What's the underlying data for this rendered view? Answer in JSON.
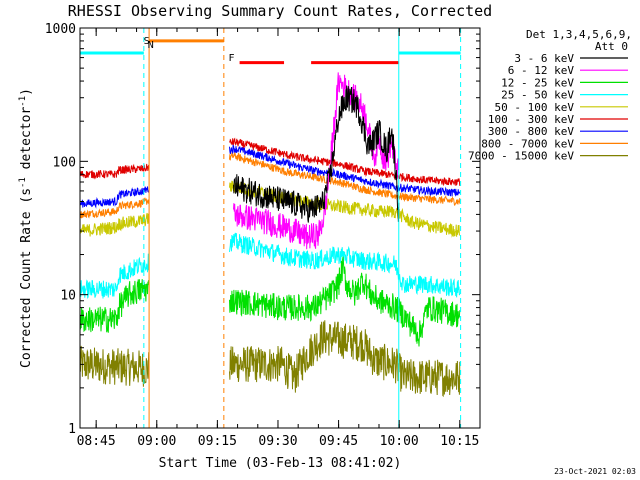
{
  "chart_data": {
    "type": "line",
    "title": "RHESSI Observing Summary Count Rates, Corrected",
    "xlabel": "Start Time (03-Feb-13 08:41:02)",
    "ylabel_main": "Corrected Count Rate (s",
    "ylabel_sup1": "-1",
    "ylabel_mid": " detector",
    "ylabel_sup2": "-1",
    "ylabel_end": ")",
    "x_unit": "minutes since 08:41:02",
    "xlim": [
      0,
      99
    ],
    "yscale": "log",
    "ylim": [
      1,
      1000
    ],
    "x_ticks": [
      {
        "label": "08:45",
        "value": 4
      },
      {
        "label": "09:00",
        "value": 19
      },
      {
        "label": "09:15",
        "value": 34
      },
      {
        "label": "09:30",
        "value": 49
      },
      {
        "label": "09:45",
        "value": 64
      },
      {
        "label": "10:00",
        "value": 79
      },
      {
        "label": "10:15",
        "value": 94
      }
    ],
    "y_ticks": [
      {
        "label": "1",
        "value": 1
      },
      {
        "label": "10",
        "value": 10
      },
      {
        "label": "100",
        "value": 100
      },
      {
        "label": "1000",
        "value": 1000
      }
    ],
    "legend": {
      "header1": "Det 1,3,4,5,6,9,",
      "header2": "Att 0",
      "entries": [
        {
          "name": "3 - 6 keV",
          "color": "#000000"
        },
        {
          "name": "6 - 12 keV",
          "color": "#ff00ff"
        },
        {
          "name": "12 - 25 keV",
          "color": "#00e000"
        },
        {
          "name": "25 - 50 keV",
          "color": "#00ffff"
        },
        {
          "name": "50 - 100 keV",
          "color": "#c8c800"
        },
        {
          "name": "100 - 300 keV",
          "color": "#e00000"
        },
        {
          "name": "300 - 800 keV",
          "color": "#0000ff"
        },
        {
          "name": "800 - 7000 keV",
          "color": "#ff7f00"
        },
        {
          "name": "7000 - 15000 keV",
          "color": "#808000"
        }
      ]
    },
    "gap": [
      17,
      37
    ],
    "annotations": [
      {
        "label": "S",
        "x": 16.5,
        "color": "#ff7f00"
      },
      {
        "label": "N",
        "x": 17.5,
        "color": "#00ffff"
      },
      {
        "label": "F",
        "x": 37.5,
        "color": "#ff0000"
      }
    ],
    "vlines": [
      {
        "x": 15.8,
        "color": "#00ffff",
        "dash": true
      },
      {
        "x": 17.1,
        "color": "#ff7f00",
        "dash": false
      },
      {
        "x": 35.6,
        "color": "#ff7f00",
        "dash": true
      },
      {
        "x": 78.9,
        "color": "#00ffff",
        "dash": false
      },
      {
        "x": 94.2,
        "color": "#00ffff",
        "dash": true
      }
    ],
    "bars": [
      {
        "x0": 0,
        "x1": 15.8,
        "y": 650,
        "color": "#00ffff"
      },
      {
        "x0": 17.1,
        "x1": 35.6,
        "y": 800,
        "color": "#ff7f00"
      },
      {
        "x0": 39.5,
        "x1": 50.5,
        "y": 550,
        "color": "#ff0000"
      },
      {
        "x0": 57.2,
        "x1": 78.9,
        "y": 550,
        "color": "#ff0000"
      },
      {
        "x0": 78.9,
        "x1": 94.2,
        "y": 650,
        "color": "#00ffff"
      }
    ],
    "series": [
      {
        "name": "3 - 6 keV",
        "color": "#000000",
        "noise": 0.1,
        "x": [
          38,
          45,
          53,
          57,
          60,
          62,
          64,
          66,
          68,
          69,
          70,
          71,
          72,
          73,
          74,
          75,
          76,
          77,
          77.6,
          78.2,
          78.9
        ],
        "y": [
          65,
          56,
          48,
          43,
          48,
          80,
          220,
          300,
          280,
          240,
          190,
          140,
          130,
          150,
          170,
          140,
          120,
          180,
          130,
          80,
          40
        ]
      },
      {
        "name": "6 - 12 keV",
        "color": "#ff00ff",
        "noise": 0.1,
        "x": [
          38,
          45,
          52,
          56,
          59,
          60.5,
          62,
          64,
          66,
          68,
          70,
          71,
          72,
          73,
          74,
          75,
          76,
          77,
          78,
          78.9
        ],
        "y": [
          40,
          36,
          31,
          27,
          28,
          40,
          100,
          400,
          350,
          300,
          250,
          200,
          140,
          110,
          150,
          110,
          100,
          140,
          100,
          80
        ]
      },
      {
        "name": "12 - 25 keV",
        "color": "#00e000",
        "noise": 0.1,
        "x": [
          0,
          9,
          9.6,
          12,
          15.8,
          38,
          50,
          58,
          62,
          64,
          65,
          66,
          68,
          70,
          72,
          74,
          76,
          78,
          80,
          84,
          86,
          94
        ],
        "y": [
          6.5,
          6.5,
          8,
          10,
          11,
          9,
          8,
          8,
          10,
          12,
          16,
          12,
          10,
          13,
          10,
          9,
          8.5,
          8,
          7,
          5,
          8,
          7
        ]
      },
      {
        "name": "25 - 50 keV",
        "color": "#00ffff",
        "noise": 0.07,
        "x": [
          0,
          9,
          9.6,
          15.8,
          38,
          45,
          52,
          58,
          64,
          70,
          78,
          80,
          86,
          94
        ],
        "y": [
          11,
          11,
          14,
          17,
          25,
          22,
          19,
          18,
          20,
          18,
          17,
          12,
          12,
          11
        ]
      },
      {
        "name": "50 - 100 keV",
        "color": "#c8c800",
        "noise": 0.05,
        "x": [
          0,
          9,
          9.6,
          15.8,
          38,
          48,
          58,
          66,
          74,
          78,
          82,
          88,
          94
        ],
        "y": [
          30,
          32,
          34,
          36,
          65,
          55,
          48,
          45,
          42,
          42,
          35,
          32,
          30
        ]
      },
      {
        "name": "100 - 300 keV",
        "color": "#e00000",
        "noise": 0.03,
        "x": [
          0,
          9,
          9.6,
          15.8,
          38,
          45,
          52,
          58,
          64,
          70,
          78,
          86,
          94
        ],
        "y": [
          80,
          80,
          86,
          88,
          140,
          125,
          110,
          102,
          96,
          85,
          78,
          72,
          70
        ]
      },
      {
        "name": "300 - 800 keV",
        "color": "#0000ff",
        "noise": 0.03,
        "x": [
          0,
          9,
          9.6,
          15.8,
          38,
          45,
          52,
          58,
          64,
          70,
          78,
          86,
          94
        ],
        "y": [
          48,
          50,
          56,
          60,
          125,
          110,
          95,
          85,
          80,
          72,
          64,
          60,
          58
        ]
      },
      {
        "name": "800 - 7000 keV",
        "color": "#ff7f00",
        "noise": 0.03,
        "x": [
          0,
          9,
          9.6,
          15.8,
          38,
          45,
          52,
          58,
          64,
          70,
          78,
          86,
          94
        ],
        "y": [
          40,
          42,
          46,
          49,
          110,
          95,
          82,
          76,
          70,
          62,
          55,
          52,
          50
        ]
      },
      {
        "name": "7000 - 15000 keV",
        "color": "#808000",
        "noise": 0.14,
        "x": [
          0,
          15.8,
          38,
          50,
          53,
          56,
          60,
          66,
          70,
          73,
          78,
          80,
          86,
          94
        ],
        "y": [
          3,
          2.8,
          3,
          3,
          2.4,
          3.5,
          4.8,
          4.5,
          4.3,
          3.2,
          3,
          2.4,
          2.4,
          2.4
        ]
      }
    ]
  },
  "timestamp": "23-Oct-2021 02:03"
}
